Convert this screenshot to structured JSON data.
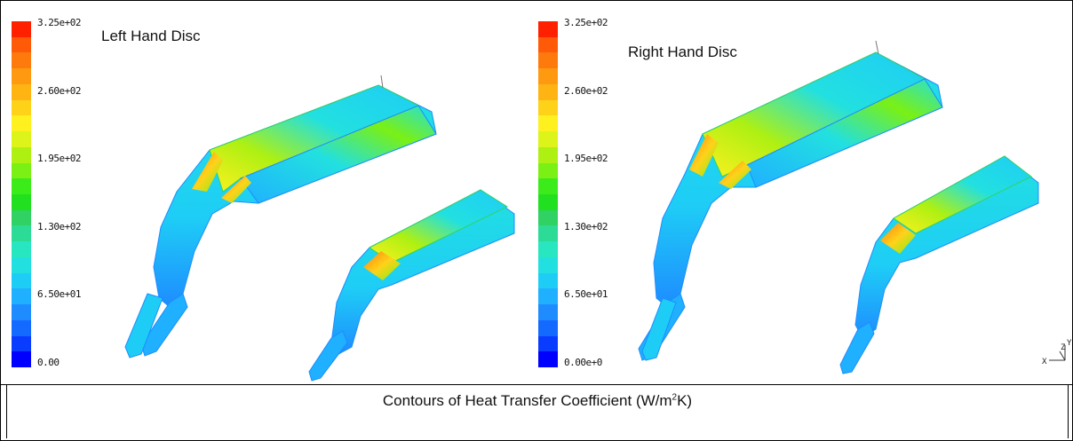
{
  "colormap": [
    "#0000ff",
    "#0a3cff",
    "#1469ff",
    "#1e8cff",
    "#1fb0ff",
    "#1ecdf6",
    "#22e0e0",
    "#28e6c0",
    "#2cdc96",
    "#30d264",
    "#20e020",
    "#3cec1a",
    "#7af014",
    "#aef012",
    "#dcf41a",
    "#fff020",
    "#ffd21a",
    "#ffb414",
    "#ff9a10",
    "#ff7a0c",
    "#ff5a08",
    "#ff2000"
  ],
  "left_panel": {
    "title": "Left Hand Disc",
    "ticks": [
      "3.25e+02",
      "2.60e+02",
      "1.95e+02",
      "1.30e+02",
      "6.50e+01",
      "0.00"
    ]
  },
  "right_panel": {
    "title": "Right Hand Disc",
    "ticks": [
      "3.25e+02",
      "2.60e+02",
      "1.95e+02",
      "1.30e+02",
      "6.50e+01",
      "0.00e+0"
    ]
  },
  "caption": {
    "text_before": "Contours of Heat Transfer Coefficient (W/m",
    "superscript": "2",
    "text_after": "K)"
  },
  "axes_triad": {
    "y": "Y",
    "z": "Z",
    "x": "X"
  }
}
